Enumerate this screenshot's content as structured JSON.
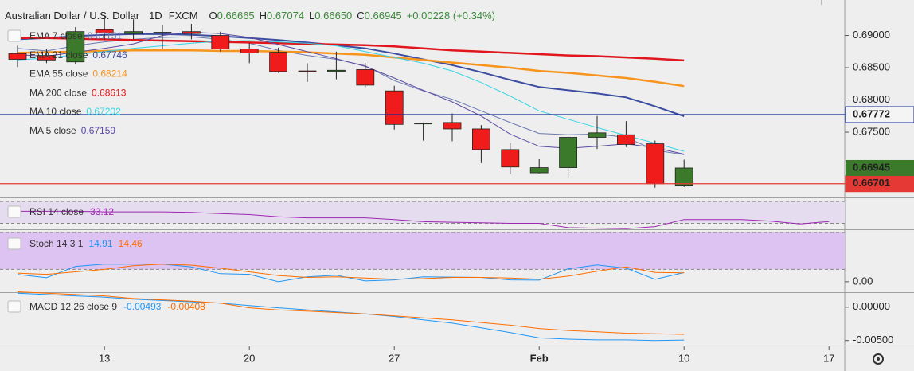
{
  "chart_data": [
    {
      "type": "candlestick",
      "title": "Australian Dollar / U.S. Dollar",
      "interval": "1D",
      "source": "FXCM",
      "quote": [
        {
          "label": "O",
          "text": "0.66665"
        },
        {
          "label": "H",
          "text": "0.67074"
        },
        {
          "label": "L",
          "text": "0.66650"
        },
        {
          "label": "C",
          "text": "0.66945"
        }
      ],
      "change": "+0.00228 (+0.34%)",
      "categories": [
        null,
        null,
        null,
        "13",
        null,
        null,
        null,
        null,
        "20",
        null,
        null,
        null,
        null,
        "27",
        null,
        null,
        null,
        null,
        "Feb",
        null,
        null,
        null,
        null,
        "10",
        null,
        null,
        null,
        null,
        "17"
      ],
      "open": [
        0.6872,
        0.6869,
        0.6859,
        0.6909,
        0.6903,
        0.6904,
        0.6906,
        0.69,
        0.6879,
        0.6874,
        0.6845,
        0.6844,
        0.6847,
        0.6814,
        0.6764,
        0.6765,
        0.6755,
        0.6723,
        0.6687,
        0.6695,
        0.6742,
        0.6746,
        0.6732,
        0.66665,
        null,
        null,
        null,
        null,
        null
      ],
      "high": [
        0.6884,
        0.6879,
        0.6913,
        0.6931,
        0.6925,
        0.6916,
        0.6918,
        0.6906,
        0.6888,
        0.6881,
        0.6857,
        0.6875,
        0.6857,
        0.6822,
        0.6765,
        0.6779,
        0.6761,
        0.6733,
        0.6708,
        0.6743,
        0.6775,
        0.6767,
        0.6737,
        0.67074,
        null,
        null,
        null,
        null,
        null
      ],
      "low": [
        0.6851,
        0.6857,
        0.6856,
        0.6894,
        0.6894,
        0.6879,
        0.6894,
        0.6875,
        0.6857,
        0.6842,
        0.6828,
        0.6832,
        0.682,
        0.6754,
        0.6737,
        0.6736,
        0.6702,
        0.6685,
        0.6686,
        0.668,
        0.6724,
        0.6727,
        0.6664,
        0.6665,
        null,
        null,
        null,
        null,
        null
      ],
      "close": [
        0.6863,
        0.6862,
        0.6906,
        0.6904,
        0.6906,
        0.6905,
        0.6903,
        0.6879,
        0.6873,
        0.6844,
        0.6844,
        0.6846,
        0.6823,
        0.6762,
        0.6764,
        0.6755,
        0.6723,
        0.6696,
        0.6695,
        0.6742,
        0.6749,
        0.6731,
        0.667,
        0.66945,
        null,
        null,
        null,
        null,
        null
      ],
      "colors": {
        "up": "#3b7a2a",
        "down": "#f01b1b"
      },
      "series": [
        {
          "name": "EMA 7 close",
          "color": "#6a78b0",
          "values": [
            0.688,
            0.6876,
            0.6884,
            0.689,
            0.6894,
            0.6897,
            0.6898,
            0.6894,
            0.6888,
            0.6877,
            0.6869,
            0.6863,
            0.6853,
            0.683,
            0.6814,
            0.6801,
            0.6783,
            0.6765,
            0.6748,
            0.6746,
            0.6747,
            0.6742,
            0.6722,
            0.67151,
            null,
            null,
            null,
            null,
            null
          ]
        },
        {
          "name": "EMA 21 close",
          "color": "#3b4da0",
          "values": [
            0.6894,
            0.6896,
            0.6899,
            0.6901,
            0.6902,
            0.6902,
            0.6901,
            0.6899,
            0.6896,
            0.6893,
            0.6889,
            0.6885,
            0.688,
            0.6872,
            0.6863,
            0.6854,
            0.6843,
            0.6831,
            0.682,
            0.6815,
            0.681,
            0.6804,
            0.679,
            0.67746,
            null,
            null,
            null,
            null,
            null
          ]
        },
        {
          "name": "EMA 55 close",
          "color": "#f7941d",
          "values": [
            0.6873,
            0.6874,
            0.6875,
            0.6876,
            0.6877,
            0.6877,
            0.6877,
            0.6876,
            0.6876,
            0.6875,
            0.6874,
            0.6872,
            0.687,
            0.6866,
            0.6862,
            0.6858,
            0.6854,
            0.685,
            0.6845,
            0.6842,
            0.6838,
            0.6834,
            0.6828,
            0.68214,
            null,
            null,
            null,
            null,
            null
          ]
        },
        {
          "name": "MA 200 close",
          "color": "#e0161c",
          "values": [
            0.6896,
            0.6896,
            0.6895,
            0.6894,
            0.6893,
            0.6892,
            0.6891,
            0.689,
            0.6889,
            0.6888,
            0.6887,
            0.6886,
            0.6885,
            0.6883,
            0.688,
            0.6877,
            0.6875,
            0.6873,
            0.6871,
            0.6869,
            0.6868,
            0.6866,
            0.6864,
            0.68613,
            null,
            null,
            null,
            null,
            null
          ]
        },
        {
          "name": "MA 10 close",
          "color": "#35d4e6",
          "values": [
            0.6862,
            0.6865,
            0.687,
            0.6875,
            0.688,
            0.6884,
            0.6888,
            0.6891,
            0.6892,
            0.689,
            0.6888,
            0.6884,
            0.6875,
            0.6866,
            0.6857,
            0.6845,
            0.6827,
            0.6806,
            0.6783,
            0.677,
            0.6757,
            0.6745,
            0.6733,
            0.67202,
            null,
            null,
            null,
            null,
            null
          ]
        },
        {
          "name": "MA 5 close",
          "color": "#5c4aa3",
          "values": [
            0.687,
            0.6868,
            0.6874,
            0.688,
            0.6887,
            0.69,
            0.6905,
            0.6903,
            0.6897,
            0.6886,
            0.6875,
            0.6864,
            0.6852,
            0.6834,
            0.6815,
            0.6797,
            0.6775,
            0.6747,
            0.6728,
            0.6725,
            0.6728,
            0.6732,
            0.6726,
            0.67159,
            null,
            null,
            null,
            null,
            null
          ]
        }
      ],
      "ylim": [
        0.665,
        0.6955
      ],
      "yticks": [
        {
          "value": 0.69,
          "label": "0.69000"
        },
        {
          "value": 0.685,
          "label": "0.68500"
        },
        {
          "value": 0.68,
          "label": "0.68000"
        },
        {
          "value": 0.675,
          "label": "0.67500"
        }
      ],
      "hlines": [
        {
          "value": 0.67772,
          "color": "#1a2a9c"
        },
        {
          "value": 0.66701,
          "color": "#e53935"
        }
      ],
      "last_price": 0.66945
    },
    {
      "type": "line",
      "title": "RSI 14 close",
      "series": [
        {
          "color": "#9c27b0",
          "values": [
            52,
            52,
            52,
            51,
            51,
            51,
            50,
            48,
            46,
            42,
            40,
            40,
            40,
            37,
            33,
            32,
            31,
            30,
            30,
            22,
            21,
            20,
            24,
            37,
            37,
            37,
            34,
            29,
            33.12
          ]
        }
      ],
      "levels": [
        30,
        70
      ],
      "band_color": "#e6dcf0",
      "ylim": [
        19,
        76
      ]
    },
    {
      "type": "line",
      "title": "Stoch 14 3 1",
      "series": [
        {
          "color": "#2196f3",
          "values": [
            11.7,
            6.5,
            25,
            28.7,
            28.7,
            28.7,
            24,
            13,
            12,
            0,
            8,
            10.4,
            1.3,
            3,
            7.8,
            7.5,
            7,
            3,
            2.6,
            20.9,
            27.4,
            22,
            3.9,
            14.91
          ]
        },
        {
          "color": "#ff6d00",
          "values": [
            14,
            12,
            16,
            20,
            26,
            28.7,
            27,
            22,
            16,
            10,
            7,
            8,
            6,
            4,
            5,
            7,
            7,
            6,
            4,
            9,
            17,
            24,
            15,
            14.46
          ]
        }
      ],
      "levels": [
        20,
        80
      ],
      "band_color": "#dcc3f2",
      "ylim": [
        -17,
        84
      ],
      "yticks": [
        {
          "value": 0,
          "label": "0.00"
        }
      ]
    },
    {
      "type": "line",
      "title": "MACD 12 26 close 9",
      "series": [
        {
          "color": "#2196f3",
          "values": [
            0.0021,
            0.0019,
            0.0017,
            0.0015,
            0.0012,
            0.001,
            0.0008,
            0.0006,
            0.00025,
            -0.0001,
            -0.0004,
            -0.0007,
            -0.001,
            -0.0014,
            -0.0019,
            -0.0024,
            -0.0031,
            -0.0038,
            -0.0046,
            -0.0048,
            -0.0049,
            -0.0049,
            -0.005,
            -0.00493
          ]
        },
        {
          "color": "#ff6d00",
          "values": [
            0.0023,
            0.0021,
            0.0019,
            0.0017,
            0.0013,
            0.0011,
            0.0009,
            0.0006,
            -0.0001,
            -0.0004,
            -0.0006,
            -0.0008,
            -0.001,
            -0.0013,
            -0.0016,
            -0.0019,
            -0.0023,
            -0.0027,
            -0.0032,
            -0.0035,
            -0.0037,
            -0.0039,
            -0.004,
            -0.00408
          ]
        }
      ],
      "ylim": [
        -0.00575,
        0.002125
      ],
      "yticks": [
        {
          "value": 0,
          "label": "0.00000"
        },
        {
          "value": -0.005,
          "label": "-0.00500"
        }
      ]
    }
  ]
}
